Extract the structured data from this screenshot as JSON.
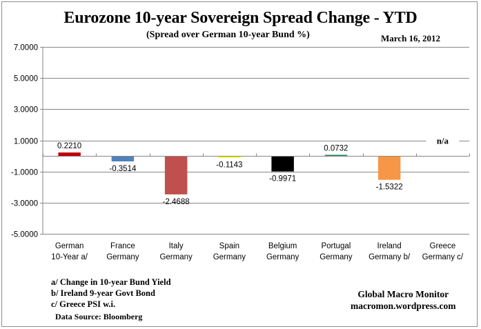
{
  "header": {
    "title": "Eurozone 10-year Sovereign Spread Change - YTD",
    "subtitle": "(Spread over German 10-year Bund %)",
    "date": "March 16,  2012"
  },
  "footnotes": [
    "a/  Change in 10-year Bund Yield",
    "b/  Ireland 9-year Govt Bond",
    "c/  Greece PSI w.i."
  ],
  "source": "Data Source:  Bloomberg",
  "brand": {
    "name": "Global Macro Monitor",
    "url": "macromon.wordpress.com"
  },
  "chart_data": {
    "type": "bar",
    "title": "Eurozone 10-year Sovereign Spread Change - YTD",
    "subtitle": "(Spread over German 10-year Bund %)",
    "xlabel": "",
    "ylabel": "",
    "ylim": [
      -5,
      7
    ],
    "yticks": [
      7,
      5,
      3,
      1,
      -1,
      -3,
      -5
    ],
    "ytick_labels": [
      "7.0000",
      "5.0000",
      "3.0000",
      "1.0000",
      "-1.0000",
      "-3.0000",
      "-5.0000"
    ],
    "grid": true,
    "legend": "none",
    "categories": [
      [
        "German",
        "10-Year a/"
      ],
      [
        "France",
        "Germany"
      ],
      [
        "Italy",
        "Germany"
      ],
      [
        "Spain",
        "Germany"
      ],
      [
        "Belgium",
        "Germany"
      ],
      [
        "Portugal",
        "Germany"
      ],
      [
        "Ireland",
        "Germany b/"
      ],
      [
        "Greece",
        "Germany c/"
      ]
    ],
    "values": [
      0.221,
      -0.3514,
      -2.4688,
      -0.1143,
      -0.9971,
      0.0732,
      -1.5322,
      null
    ],
    "data_labels": [
      "0.2210",
      "-0.3514",
      "-2.4688",
      "-0.1143",
      "-0.9971",
      "0.0732",
      "-1.5322",
      "n/a"
    ],
    "colors": [
      "#c00000",
      "#4f81bd",
      "#c0504d",
      "#ffff00",
      "#000000",
      "#2e8b57",
      "#f79646",
      "#ffffff"
    ]
  }
}
